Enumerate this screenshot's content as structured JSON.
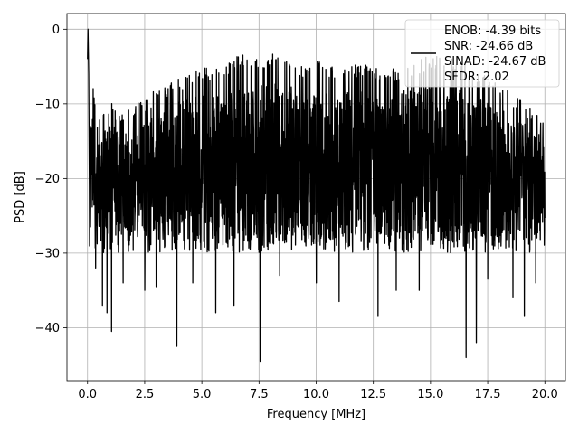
{
  "chart_data": {
    "type": "line",
    "xlabel": "Frequency [MHz]",
    "ylabel": "PSD [dB]",
    "xlim": [
      -0.9,
      20.9
    ],
    "ylim": [
      -47.1,
      2.1
    ],
    "grid": true,
    "legend_placement": "top-right",
    "x_ticks": [
      0.0,
      2.5,
      5.0,
      7.5,
      10.0,
      12.5,
      15.0,
      17.5,
      20.0
    ],
    "x_tick_labels": [
      "0.0",
      "2.5",
      "5.0",
      "7.5",
      "10.0",
      "12.5",
      "15.0",
      "17.5",
      "20.0"
    ],
    "y_ticks": [
      0,
      -10,
      -20,
      -30,
      -40
    ],
    "y_tick_labels": [
      "0",
      "−10",
      "−20",
      "−30",
      "−40"
    ],
    "series": [
      {
        "color": "#000000",
        "legend_lines": [
          "ENOB: -4.39 bits",
          "SNR: -24.66 dB",
          "SINAD: -24.67 dB",
          "SFDR: 2.02"
        ],
        "x_range": [
          0.0,
          20.0
        ],
        "peak": {
          "x": 0.02,
          "y": 0.0
        },
        "envelope_upper": [
          [
            0.1,
            -5.5
          ],
          [
            0.5,
            -11.5
          ],
          [
            1.0,
            -9.5
          ],
          [
            1.5,
            -11.5
          ],
          [
            2.0,
            -10.0
          ],
          [
            2.5,
            -9.5
          ],
          [
            3.0,
            -8.0
          ],
          [
            3.5,
            -7.5
          ],
          [
            4.0,
            -6.5
          ],
          [
            4.5,
            -5.5
          ],
          [
            5.0,
            -5.0
          ],
          [
            5.5,
            -5.5
          ],
          [
            6.0,
            -4.5
          ],
          [
            6.5,
            -3.5
          ],
          [
            7.0,
            -3.0
          ],
          [
            7.5,
            -3.5
          ],
          [
            8.0,
            -3.0
          ],
          [
            8.5,
            -3.5
          ],
          [
            9.0,
            -4.0
          ],
          [
            9.5,
            -4.5
          ],
          [
            10.0,
            -4.0
          ],
          [
            10.5,
            -4.5
          ],
          [
            11.0,
            -5.0
          ],
          [
            11.5,
            -4.5
          ],
          [
            12.0,
            -4.5
          ],
          [
            12.5,
            -5.0
          ],
          [
            13.0,
            -5.5
          ],
          [
            13.5,
            -5.0
          ],
          [
            14.0,
            -4.5
          ],
          [
            14.5,
            -4.0
          ],
          [
            15.0,
            -3.5
          ],
          [
            15.5,
            -3.5
          ],
          [
            16.0,
            -4.0
          ],
          [
            16.5,
            -4.5
          ],
          [
            17.0,
            -5.5
          ],
          [
            17.5,
            -6.5
          ],
          [
            18.0,
            -7.5
          ],
          [
            18.5,
            -8.5
          ],
          [
            19.0,
            -9.5
          ],
          [
            19.5,
            -11.0
          ],
          [
            20.0,
            -12.0
          ]
        ],
        "notable_dips": [
          [
            0.35,
            -32.0
          ],
          [
            0.65,
            -37.0
          ],
          [
            0.85,
            -38.0
          ],
          [
            1.05,
            -40.5
          ],
          [
            1.55,
            -34.0
          ],
          [
            2.5,
            -35.0
          ],
          [
            3.0,
            -34.5
          ],
          [
            3.9,
            -42.5
          ],
          [
            4.6,
            -34.0
          ],
          [
            5.6,
            -38.0
          ],
          [
            6.4,
            -37.0
          ],
          [
            7.55,
            -44.5
          ],
          [
            8.4,
            -33.0
          ],
          [
            10.0,
            -34.0
          ],
          [
            11.0,
            -36.5
          ],
          [
            12.7,
            -38.5
          ],
          [
            13.5,
            -35.0
          ],
          [
            14.5,
            -35.0
          ],
          [
            16.55,
            -44.0
          ],
          [
            17.0,
            -42.0
          ],
          [
            17.5,
            -33.5
          ],
          [
            18.6,
            -36.0
          ],
          [
            19.1,
            -38.5
          ],
          [
            19.6,
            -34.0
          ]
        ]
      }
    ]
  }
}
